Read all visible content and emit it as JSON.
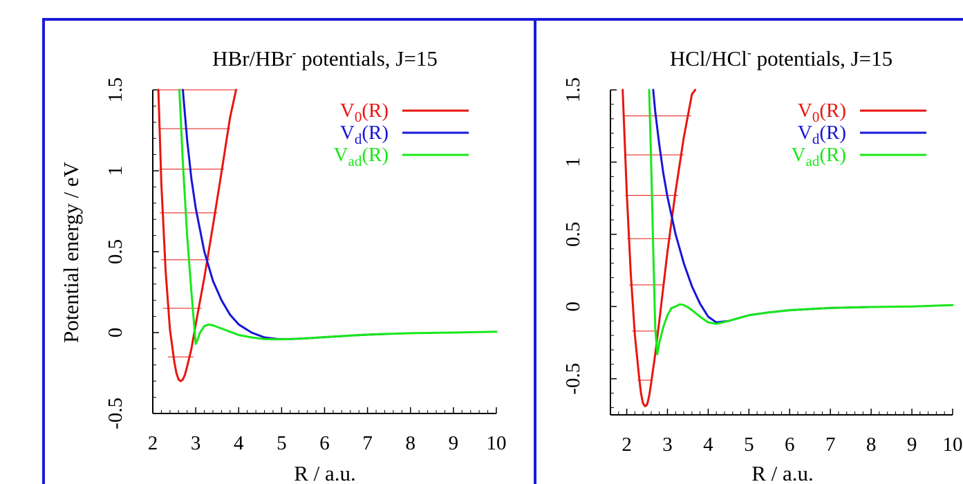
{
  "figure": {
    "ylabel": "Potential energy / eV",
    "xlabel": "R / a.u.",
    "frame_color": "#1a1adc"
  },
  "chart_data": [
    {
      "type": "line",
      "title_main": "HBr/HBr",
      "title_sup": "-",
      "title_tail": " potentials, J=15",
      "xlabel": "R / a.u.",
      "ylabel": "Potential energy / eV",
      "xlim": [
        2,
        10
      ],
      "ylim": [
        -0.5,
        1.5
      ],
      "x_ticks": [
        "2",
        "3",
        "4",
        "5",
        "6",
        "7",
        "8",
        "9",
        "10"
      ],
      "y_ticks": [
        "-0.5",
        "0",
        "0.5",
        "1",
        "1.5"
      ],
      "grid": false,
      "legend_position": "top-right",
      "series": [
        {
          "name": "V0(R)",
          "label_base": "V",
          "label_sub": "0",
          "label_tail": "(R)",
          "color": "#e8150f",
          "x": [
            2.13,
            2.2,
            2.3,
            2.4,
            2.5,
            2.55,
            2.6,
            2.65,
            2.7,
            2.75,
            2.8,
            2.9,
            3.0,
            3.2,
            3.4,
            3.6,
            3.8,
            3.94
          ],
          "y": [
            1.5,
            0.92,
            0.38,
            0.02,
            -0.18,
            -0.25,
            -0.29,
            -0.3,
            -0.29,
            -0.26,
            -0.21,
            -0.1,
            0.05,
            0.34,
            0.66,
            0.99,
            1.33,
            1.5
          ]
        },
        {
          "name": "Vd(R)",
          "label_base": "V",
          "label_sub": "d",
          "label_tail": "(R)",
          "color": "#1616d8",
          "x": [
            2.7,
            2.8,
            2.9,
            3.0,
            3.2,
            3.4,
            3.6,
            3.8,
            4.0,
            4.3,
            4.6,
            4.9,
            5.2,
            5.6,
            6.0,
            6.5,
            7.0,
            7.5
          ],
          "y": [
            1.5,
            1.19,
            0.95,
            0.77,
            0.5,
            0.32,
            0.2,
            0.11,
            0.05,
            0.0,
            -0.03,
            -0.04,
            -0.04,
            -0.035,
            -0.028,
            -0.02,
            -0.013,
            -0.008
          ]
        },
        {
          "name": "Vad(R)",
          "label_base": "V",
          "label_sub": "ad",
          "label_tail": "(R)",
          "color": "#18e818",
          "x": [
            2.62,
            2.7,
            2.8,
            2.9,
            3.0,
            3.05,
            3.1,
            3.2,
            3.3,
            3.4,
            3.6,
            3.8,
            4.0,
            4.3,
            4.6,
            4.9,
            5.2,
            5.6,
            6.0,
            6.5,
            7.0,
            7.5,
            8.0,
            9.0,
            10.0
          ],
          "y": [
            1.5,
            1.05,
            0.6,
            0.25,
            -0.07,
            -0.04,
            0.0,
            0.04,
            0.05,
            0.045,
            0.025,
            0.005,
            -0.015,
            -0.03,
            -0.04,
            -0.042,
            -0.04,
            -0.035,
            -0.028,
            -0.02,
            -0.013,
            -0.008,
            -0.004,
            0.0,
            0.005
          ]
        }
      ],
      "vibrational_levels": [
        {
          "energy": -0.15,
          "r_min": 2.35,
          "r_max": 2.95
        },
        {
          "energy": 0.15,
          "r_min": 2.24,
          "r_max": 3.14
        },
        {
          "energy": 0.45,
          "r_min": 2.19,
          "r_max": 3.33
        },
        {
          "energy": 0.74,
          "r_min": 2.16,
          "r_max": 3.51
        },
        {
          "energy": 1.01,
          "r_min": 2.15,
          "r_max": 3.66
        },
        {
          "energy": 1.26,
          "r_min": 2.14,
          "r_max": 3.8
        },
        {
          "energy": 1.5,
          "r_min": 2.13,
          "r_max": 3.94
        }
      ]
    },
    {
      "type": "line",
      "title_main": "HCl/HCl",
      "title_sup": "-",
      "title_tail": " potentials, J=15",
      "xlabel": "R / a.u.",
      "ylabel": "",
      "xlim": [
        1.6,
        10
      ],
      "ylim": [
        -0.75,
        1.5
      ],
      "x_ticks": [
        "2",
        "3",
        "4",
        "5",
        "6",
        "7",
        "8",
        "9",
        "10"
      ],
      "y_ticks": [
        "-0.5",
        "0",
        "0.5",
        "1",
        "1.5"
      ],
      "grid": false,
      "legend_position": "top-right",
      "series": [
        {
          "name": "V0(R)",
          "label_base": "V",
          "label_sub": "0",
          "label_tail": "(R)",
          "color": "#e8150f",
          "x": [
            1.9,
            2.0,
            2.1,
            2.2,
            2.3,
            2.35,
            2.4,
            2.45,
            2.5,
            2.55,
            2.6,
            2.7,
            2.8,
            3.0,
            3.2,
            3.4,
            3.6,
            3.68
          ],
          "y": [
            1.5,
            0.79,
            0.22,
            -0.2,
            -0.48,
            -0.6,
            -0.67,
            -0.69,
            -0.68,
            -0.62,
            -0.53,
            -0.33,
            -0.1,
            0.38,
            0.8,
            1.17,
            1.47,
            1.5
          ]
        },
        {
          "name": "Vd(R)",
          "label_base": "V",
          "label_sub": "d",
          "label_tail": "(R)",
          "color": "#1616d8",
          "x": [
            2.65,
            2.7,
            2.8,
            2.9,
            3.0,
            3.2,
            3.4,
            3.6,
            3.8,
            4.0,
            4.2,
            4.5,
            5.0,
            5.5,
            6.0,
            7.0,
            8.0
          ],
          "y": [
            1.5,
            1.35,
            1.12,
            0.92,
            0.76,
            0.5,
            0.3,
            0.14,
            0.02,
            -0.07,
            -0.11,
            -0.1,
            -0.06,
            -0.04,
            -0.025,
            -0.01,
            -0.003
          ]
        },
        {
          "name": "Vad(R)",
          "label_base": "V",
          "label_sub": "ad",
          "label_tail": "(R)",
          "color": "#18e818",
          "x": [
            2.55,
            2.6,
            2.65,
            2.7,
            2.75,
            2.8,
            2.9,
            3.0,
            3.1,
            3.2,
            3.3,
            3.4,
            3.5,
            3.6,
            3.8,
            4.0,
            4.2,
            4.5,
            5.0,
            5.5,
            6.0,
            7.0,
            8.0,
            9.0,
            10.0
          ],
          "y": [
            1.5,
            1.0,
            0.4,
            -0.15,
            -0.33,
            -0.25,
            -0.14,
            -0.06,
            -0.01,
            0.0,
            0.015,
            0.01,
            -0.005,
            -0.025,
            -0.07,
            -0.11,
            -0.12,
            -0.1,
            -0.06,
            -0.04,
            -0.025,
            -0.01,
            -0.003,
            0.0,
            0.01
          ]
        }
      ],
      "vibrational_levels": [
        {
          "energy": -0.51,
          "r_min": 2.26,
          "r_max": 2.6
        },
        {
          "energy": -0.17,
          "r_min": 2.13,
          "r_max": 2.77
        },
        {
          "energy": 0.15,
          "r_min": 2.06,
          "r_max": 2.93
        },
        {
          "energy": 0.47,
          "r_min": 2.01,
          "r_max": 3.09
        },
        {
          "energy": 0.77,
          "r_min": 1.97,
          "r_max": 3.26
        },
        {
          "energy": 1.05,
          "r_min": 1.94,
          "r_max": 3.41
        },
        {
          "energy": 1.32,
          "r_min": 1.92,
          "r_max": 3.58
        }
      ]
    }
  ]
}
